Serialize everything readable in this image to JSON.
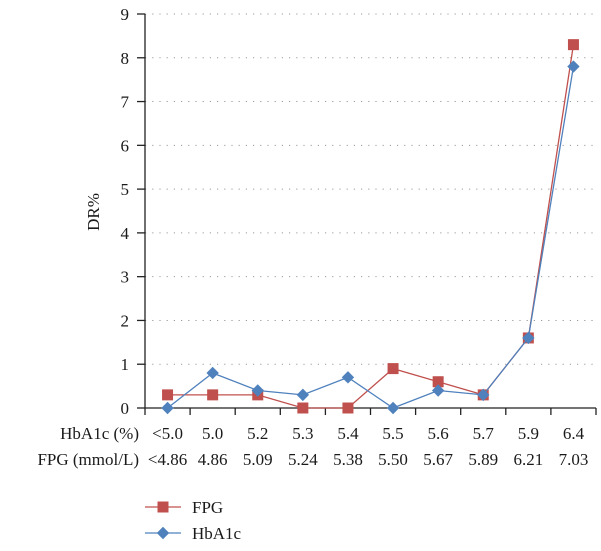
{
  "chart_data": {
    "type": "line",
    "ylabel": "DR%",
    "ylim": [
      0,
      9
    ],
    "yticks": [
      0,
      1,
      2,
      3,
      4,
      5,
      6,
      7,
      8,
      9
    ],
    "grid": "horizontal dotted",
    "legend_position": "bottom-center",
    "category_rows": [
      {
        "label": "HbA1c (%)",
        "values": [
          "<5.0",
          "5.0",
          "5.2",
          "5.3",
          "5.4",
          "5.5",
          "5.6",
          "5.7",
          "5.9",
          "6.4"
        ]
      },
      {
        "label": "FPG (mmol/L)",
        "values": [
          "<4.86",
          "4.86",
          "5.09",
          "5.24",
          "5.38",
          "5.50",
          "5.67",
          "5.89",
          "6.21",
          "7.03"
        ]
      }
    ],
    "series": [
      {
        "name": "FPG",
        "marker": "square",
        "color": "#c0504d",
        "values": [
          0.3,
          0.3,
          0.3,
          0.0,
          0.0,
          0.9,
          0.6,
          0.3,
          1.6,
          8.3
        ]
      },
      {
        "name": "HbA1c",
        "marker": "diamond",
        "color": "#4f81bd",
        "values": [
          0.0,
          0.8,
          0.4,
          0.3,
          0.7,
          0.0,
          0.4,
          0.3,
          1.6,
          7.8
        ]
      }
    ]
  }
}
